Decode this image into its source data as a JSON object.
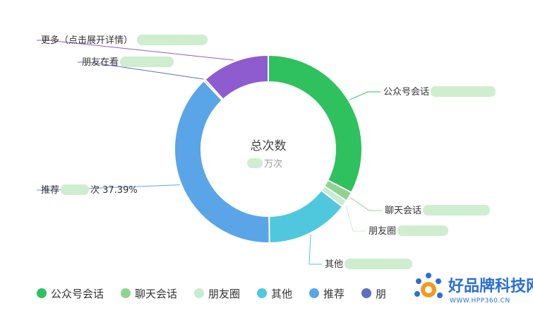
{
  "chart_data": {
    "type": "pie",
    "title": "",
    "center": {
      "title": "总次数",
      "subtitle": "万次"
    },
    "slices": [
      {
        "name": "公众号会话",
        "value": 32.0,
        "color": "#2fc15d",
        "label": "公众号会话",
        "label_side": "right"
      },
      {
        "name": "聊天会话",
        "value": 1.6,
        "color": "#8ed48f",
        "label": "聊天会话",
        "label_side": "right"
      },
      {
        "name": "朋友圈",
        "value": 1.2,
        "color": "#c8ecd0",
        "label": "朋友圈",
        "label_side": "right"
      },
      {
        "name": "其他",
        "value": 14.0,
        "color": "#4fc8de",
        "label": "其他",
        "label_side": "right"
      },
      {
        "name": "推荐",
        "value": 37.39,
        "color": "#59a5e8",
        "label": "推荐",
        "label_suffix": "次 37.39%",
        "label_side": "left"
      },
      {
        "name": "朋友在看",
        "value": 0.3,
        "color": "#5e6cc6",
        "label": "朋友在看",
        "label_side": "left"
      },
      {
        "name": "更多（点击展开详情）",
        "value": 11.5,
        "color": "#8e5ccf",
        "label": "更多（点击展开详情）",
        "label_side": "left"
      }
    ],
    "legend": {
      "position": "bottom-left",
      "items": [
        {
          "label": "公众号会话",
          "color": "#2fc15d"
        },
        {
          "label": "聊天会话",
          "color": "#8ed48f"
        },
        {
          "label": "朋友圈",
          "color": "#c8ecd0"
        },
        {
          "label": "其他",
          "color": "#4fc8de"
        },
        {
          "label": "推荐",
          "color": "#59a5e8"
        },
        {
          "label": "朋",
          "color": "#5e6cc6"
        }
      ]
    }
  },
  "watermark": {
    "text": "好品牌科技网",
    "url": "WWW.HPP360.CN"
  }
}
